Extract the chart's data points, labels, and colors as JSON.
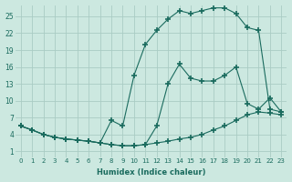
{
  "xlabel": "Humidex (Indice chaleur)",
  "ylabel": "",
  "background_color": "#cce8e0",
  "grid_color": "#aaccC4",
  "line_color": "#1a6b5e",
  "xlim": [
    -0.5,
    23.5
  ],
  "ylim": [
    0,
    27
  ],
  "xticks": [
    0,
    1,
    2,
    3,
    4,
    5,
    6,
    7,
    8,
    9,
    10,
    11,
    12,
    13,
    14,
    15,
    16,
    17,
    18,
    19,
    20,
    21,
    22,
    23
  ],
  "yticks": [
    1,
    4,
    7,
    10,
    13,
    16,
    19,
    22,
    25
  ],
  "line1_x": [
    0,
    1,
    2,
    3,
    4,
    5,
    6,
    7,
    8,
    9,
    10,
    11,
    12,
    13,
    14,
    15,
    16,
    17,
    18,
    19,
    20,
    21,
    22,
    23
  ],
  "line1_y": [
    5.5,
    4.8,
    4.0,
    3.5,
    3.2,
    3.0,
    2.8,
    2.5,
    2.2,
    2.0,
    2.0,
    2.2,
    2.5,
    2.8,
    3.2,
    3.5,
    4.0,
    4.8,
    5.5,
    6.5,
    7.5,
    8.0,
    7.8,
    7.5
  ],
  "line2_x": [
    0,
    1,
    2,
    3,
    4,
    5,
    6,
    7,
    8,
    9,
    10,
    11,
    12,
    13,
    14,
    15,
    16,
    17,
    18,
    19,
    20,
    21,
    22,
    23
  ],
  "line2_y": [
    5.5,
    4.8,
    4.0,
    3.5,
    3.2,
    3.0,
    2.8,
    2.5,
    6.5,
    5.5,
    14.5,
    20.0,
    22.5,
    24.5,
    26.0,
    25.5,
    26.0,
    26.5,
    26.5,
    25.5,
    23.0,
    22.5,
    8.5,
    8.0
  ],
  "line3_x": [
    0,
    1,
    2,
    3,
    4,
    5,
    6,
    7,
    8,
    9,
    10,
    11,
    12,
    13,
    14,
    15,
    16,
    17,
    18,
    19,
    20,
    21,
    22,
    23
  ],
  "line3_y": [
    5.5,
    4.8,
    4.0,
    3.5,
    3.2,
    3.0,
    2.8,
    2.5,
    2.2,
    2.0,
    2.0,
    2.2,
    5.5,
    13.0,
    16.5,
    14.0,
    13.5,
    13.5,
    14.5,
    16.0,
    9.5,
    8.5,
    10.5,
    8.0
  ]
}
